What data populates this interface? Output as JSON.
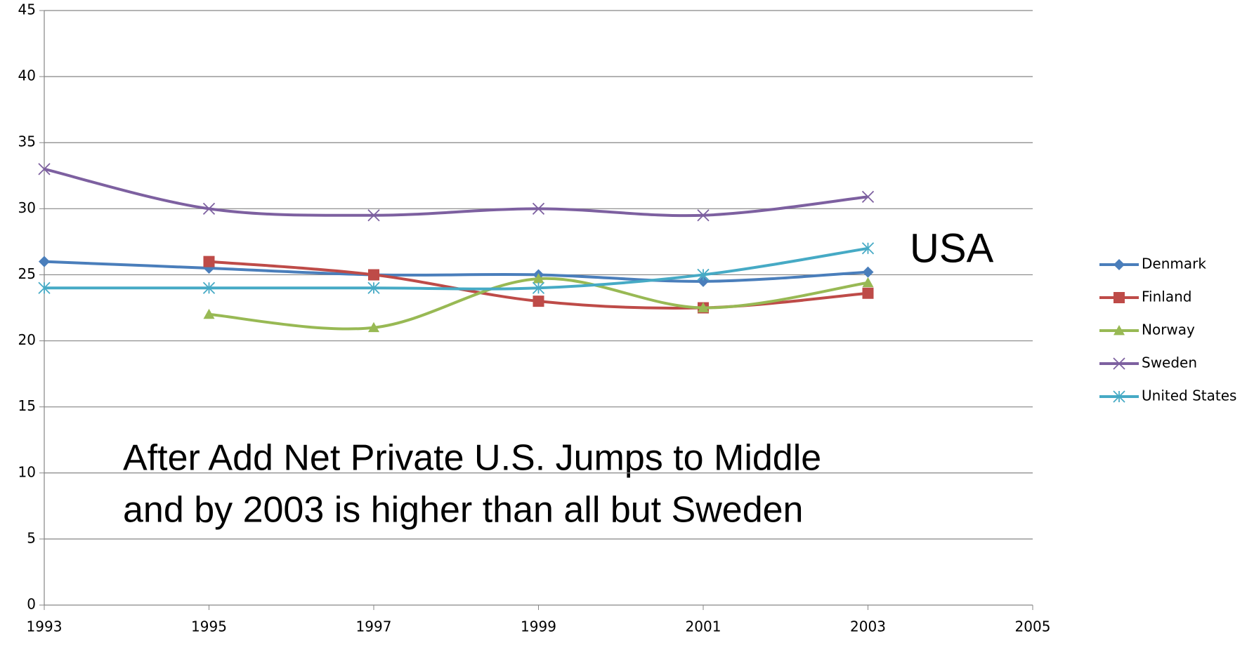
{
  "chart_data": {
    "type": "line",
    "x": [
      1993,
      1995,
      1997,
      1999,
      2001,
      2003
    ],
    "series": [
      {
        "name": "Denmark",
        "color": "#4a7ebb",
        "marker": "diamond",
        "values": [
          26,
          25.5,
          25,
          25,
          24.5,
          25.2
        ]
      },
      {
        "name": "Finland",
        "color": "#be4b48",
        "marker": "square",
        "values": [
          null,
          26,
          25,
          23,
          22.5,
          23.6
        ]
      },
      {
        "name": "Norway",
        "color": "#98b954",
        "marker": "triangle",
        "values": [
          null,
          22,
          21,
          24.7,
          22.5,
          24.4
        ]
      },
      {
        "name": "Sweden",
        "color": "#7d60a0",
        "marker": "x",
        "values": [
          33,
          30,
          29.5,
          30,
          29.5,
          30.9
        ]
      },
      {
        "name": "United States",
        "color": "#46aac5",
        "marker": "star",
        "values": [
          24,
          24,
          24,
          24,
          25,
          27
        ]
      }
    ],
    "xlim": [
      1993,
      2005
    ],
    "xticks": [
      1993,
      1995,
      1997,
      1999,
      2001,
      2003,
      2005
    ],
    "ylim": [
      0,
      45
    ],
    "yticks": [
      0,
      5,
      10,
      15,
      20,
      25,
      30,
      35,
      40,
      45
    ],
    "grid": true,
    "smooth": true,
    "legend": "right",
    "annotations": [
      "USA",
      "After Add Net Private U.S. Jumps to Middle",
      "and by 2003 is higher than all but Sweden"
    ]
  }
}
